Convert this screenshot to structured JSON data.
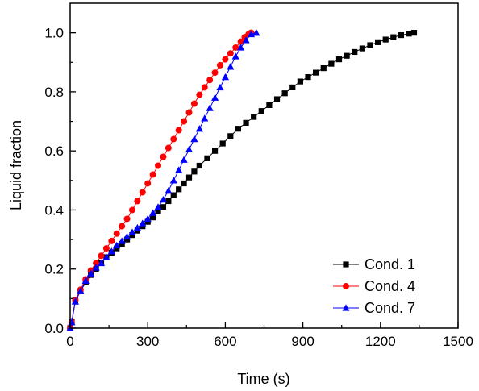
{
  "chart_data": {
    "type": "line",
    "xlabel": "Time (s)",
    "ylabel": "Liquid fraction",
    "xlim": [
      0,
      1500
    ],
    "ylim": [
      0,
      1.1
    ],
    "x_ticks": [
      0,
      300,
      600,
      900,
      1200,
      1500
    ],
    "x_tick_labels": [
      "0",
      "300",
      "600",
      "900",
      "1200",
      "1500"
    ],
    "y_ticks": [
      0.0,
      0.2,
      0.4,
      0.6,
      0.8,
      1.0
    ],
    "y_tick_labels": [
      "0.0",
      "0.2",
      "0.4",
      "0.6",
      "0.8",
      "1.0"
    ],
    "grid": false,
    "legend_position": "bottom-right",
    "series": [
      {
        "name": "Cond. 1",
        "color": "#000000",
        "marker": "square",
        "points": [
          [
            0,
            0.0
          ],
          [
            6,
            0.02
          ],
          [
            20,
            0.095
          ],
          [
            40,
            0.125
          ],
          [
            60,
            0.155
          ],
          [
            80,
            0.18
          ],
          [
            100,
            0.2
          ],
          [
            120,
            0.22
          ],
          [
            140,
            0.24
          ],
          [
            160,
            0.255
          ],
          [
            180,
            0.27
          ],
          [
            200,
            0.285
          ],
          [
            220,
            0.3
          ],
          [
            240,
            0.315
          ],
          [
            260,
            0.33
          ],
          [
            280,
            0.345
          ],
          [
            300,
            0.36
          ],
          [
            320,
            0.375
          ],
          [
            340,
            0.395
          ],
          [
            360,
            0.41
          ],
          [
            380,
            0.43
          ],
          [
            400,
            0.45
          ],
          [
            420,
            0.47
          ],
          [
            440,
            0.49
          ],
          [
            460,
            0.51
          ],
          [
            480,
            0.53
          ],
          [
            500,
            0.55
          ],
          [
            530,
            0.575
          ],
          [
            560,
            0.6
          ],
          [
            590,
            0.625
          ],
          [
            620,
            0.65
          ],
          [
            650,
            0.675
          ],
          [
            680,
            0.695
          ],
          [
            710,
            0.715
          ],
          [
            740,
            0.735
          ],
          [
            770,
            0.755
          ],
          [
            800,
            0.775
          ],
          [
            830,
            0.795
          ],
          [
            860,
            0.815
          ],
          [
            890,
            0.835
          ],
          [
            920,
            0.85
          ],
          [
            950,
            0.865
          ],
          [
            980,
            0.88
          ],
          [
            1010,
            0.895
          ],
          [
            1040,
            0.91
          ],
          [
            1070,
            0.922
          ],
          [
            1100,
            0.935
          ],
          [
            1130,
            0.947
          ],
          [
            1160,
            0.958
          ],
          [
            1190,
            0.968
          ],
          [
            1220,
            0.977
          ],
          [
            1250,
            0.985
          ],
          [
            1280,
            0.992
          ],
          [
            1310,
            0.997
          ],
          [
            1330,
            1.0
          ]
        ]
      },
      {
        "name": "Cond. 4",
        "color": "#ff0000",
        "marker": "circle",
        "points": [
          [
            0,
            0.0
          ],
          [
            6,
            0.02
          ],
          [
            20,
            0.095
          ],
          [
            40,
            0.13
          ],
          [
            60,
            0.165
          ],
          [
            80,
            0.195
          ],
          [
            100,
            0.22
          ],
          [
            120,
            0.245
          ],
          [
            140,
            0.27
          ],
          [
            160,
            0.295
          ],
          [
            180,
            0.32
          ],
          [
            200,
            0.345
          ],
          [
            220,
            0.37
          ],
          [
            240,
            0.4
          ],
          [
            260,
            0.43
          ],
          [
            280,
            0.46
          ],
          [
            300,
            0.49
          ],
          [
            320,
            0.52
          ],
          [
            340,
            0.55
          ],
          [
            360,
            0.58
          ],
          [
            380,
            0.61
          ],
          [
            400,
            0.64
          ],
          [
            420,
            0.67
          ],
          [
            440,
            0.7
          ],
          [
            460,
            0.73
          ],
          [
            480,
            0.76
          ],
          [
            500,
            0.79
          ],
          [
            520,
            0.815
          ],
          [
            540,
            0.84
          ],
          [
            560,
            0.865
          ],
          [
            580,
            0.89
          ],
          [
            600,
            0.91
          ],
          [
            620,
            0.93
          ],
          [
            640,
            0.95
          ],
          [
            660,
            0.97
          ],
          [
            675,
            0.985
          ],
          [
            690,
            0.995
          ],
          [
            700,
            1.0
          ]
        ]
      },
      {
        "name": "Cond. 7",
        "color": "#0000ff",
        "marker": "triangle",
        "points": [
          [
            0,
            0.0
          ],
          [
            6,
            0.02
          ],
          [
            20,
            0.09
          ],
          [
            40,
            0.125
          ],
          [
            60,
            0.16
          ],
          [
            80,
            0.185
          ],
          [
            100,
            0.205
          ],
          [
            120,
            0.22
          ],
          [
            140,
            0.24
          ],
          [
            160,
            0.26
          ],
          [
            180,
            0.28
          ],
          [
            200,
            0.295
          ],
          [
            220,
            0.31
          ],
          [
            240,
            0.325
          ],
          [
            260,
            0.34
          ],
          [
            280,
            0.355
          ],
          [
            300,
            0.37
          ],
          [
            320,
            0.39
          ],
          [
            340,
            0.41
          ],
          [
            360,
            0.435
          ],
          [
            380,
            0.465
          ],
          [
            400,
            0.5
          ],
          [
            420,
            0.535
          ],
          [
            440,
            0.57
          ],
          [
            460,
            0.605
          ],
          [
            480,
            0.64
          ],
          [
            500,
            0.675
          ],
          [
            520,
            0.71
          ],
          [
            540,
            0.745
          ],
          [
            560,
            0.78
          ],
          [
            580,
            0.815
          ],
          [
            600,
            0.85
          ],
          [
            620,
            0.885
          ],
          [
            640,
            0.92
          ],
          [
            660,
            0.95
          ],
          [
            680,
            0.975
          ],
          [
            700,
            0.995
          ],
          [
            720,
            1.0
          ]
        ]
      }
    ]
  }
}
